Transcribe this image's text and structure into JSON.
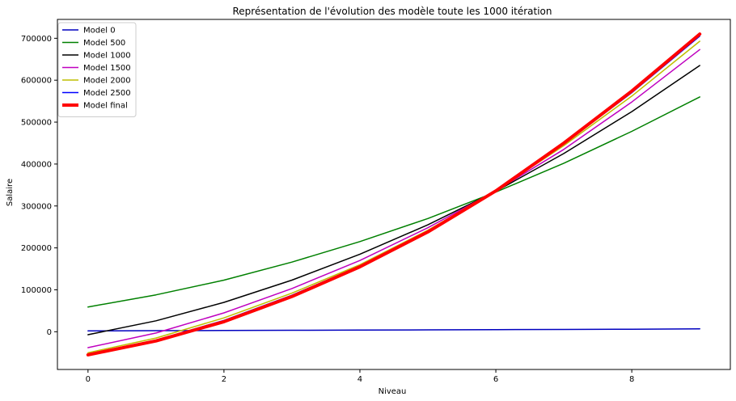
{
  "chart_data": {
    "type": "line",
    "title": "Représentation de l'évolution des modèle toute les 1000 itération",
    "xlabel": "Niveau",
    "ylabel": "Salaire",
    "xlim": [
      -0.45,
      9.45
    ],
    "ylim": [
      -90000,
      745000
    ],
    "xticks": [
      0,
      2,
      4,
      6,
      8
    ],
    "yticks": [
      0,
      100000,
      200000,
      300000,
      400000,
      500000,
      600000,
      700000
    ],
    "grid": false,
    "legend_position": "top-left",
    "x": [
      0,
      1,
      2,
      3,
      4,
      5,
      6,
      7,
      8,
      9
    ],
    "series": [
      {
        "name": "Model 0",
        "color": "#0000bf",
        "width": 1.5,
        "values": [
          2000,
          2500,
          3000,
          3500,
          4000,
          4500,
          5000,
          5500,
          6000,
          7000
        ]
      },
      {
        "name": "Model 500",
        "color": "#008000",
        "width": 1.5,
        "values": [
          59000,
          88000,
          123000,
          166000,
          215000,
          270000,
          333000,
          402000,
          478000,
          560000
        ]
      },
      {
        "name": "Model 1000",
        "color": "#000000",
        "width": 1.5,
        "values": [
          -7000,
          26000,
          70000,
          123000,
          185000,
          255000,
          335000,
          425000,
          525000,
          635000
        ]
      },
      {
        "name": "Model 1500",
        "color": "#bf00bf",
        "width": 1.5,
        "values": [
          -38000,
          -3000,
          45000,
          103000,
          170000,
          248000,
          336000,
          435000,
          548000,
          673000
        ]
      },
      {
        "name": "Model 2000",
        "color": "#bfbf00",
        "width": 1.5,
        "values": [
          -50000,
          -15000,
          33000,
          92000,
          160000,
          242000,
          336000,
          444000,
          562000,
          693000
        ]
      },
      {
        "name": "Model 2500",
        "color": "#0000ff",
        "width": 1.5,
        "values": [
          -53000,
          -20000,
          27000,
          87000,
          157000,
          240000,
          336000,
          448000,
          570000,
          705000
        ]
      },
      {
        "name": "Model final",
        "color": "#ff0000",
        "width": 4,
        "values": [
          -55000,
          -22000,
          24000,
          84000,
          155000,
          238000,
          336000,
          450000,
          574000,
          710000
        ]
      }
    ]
  }
}
